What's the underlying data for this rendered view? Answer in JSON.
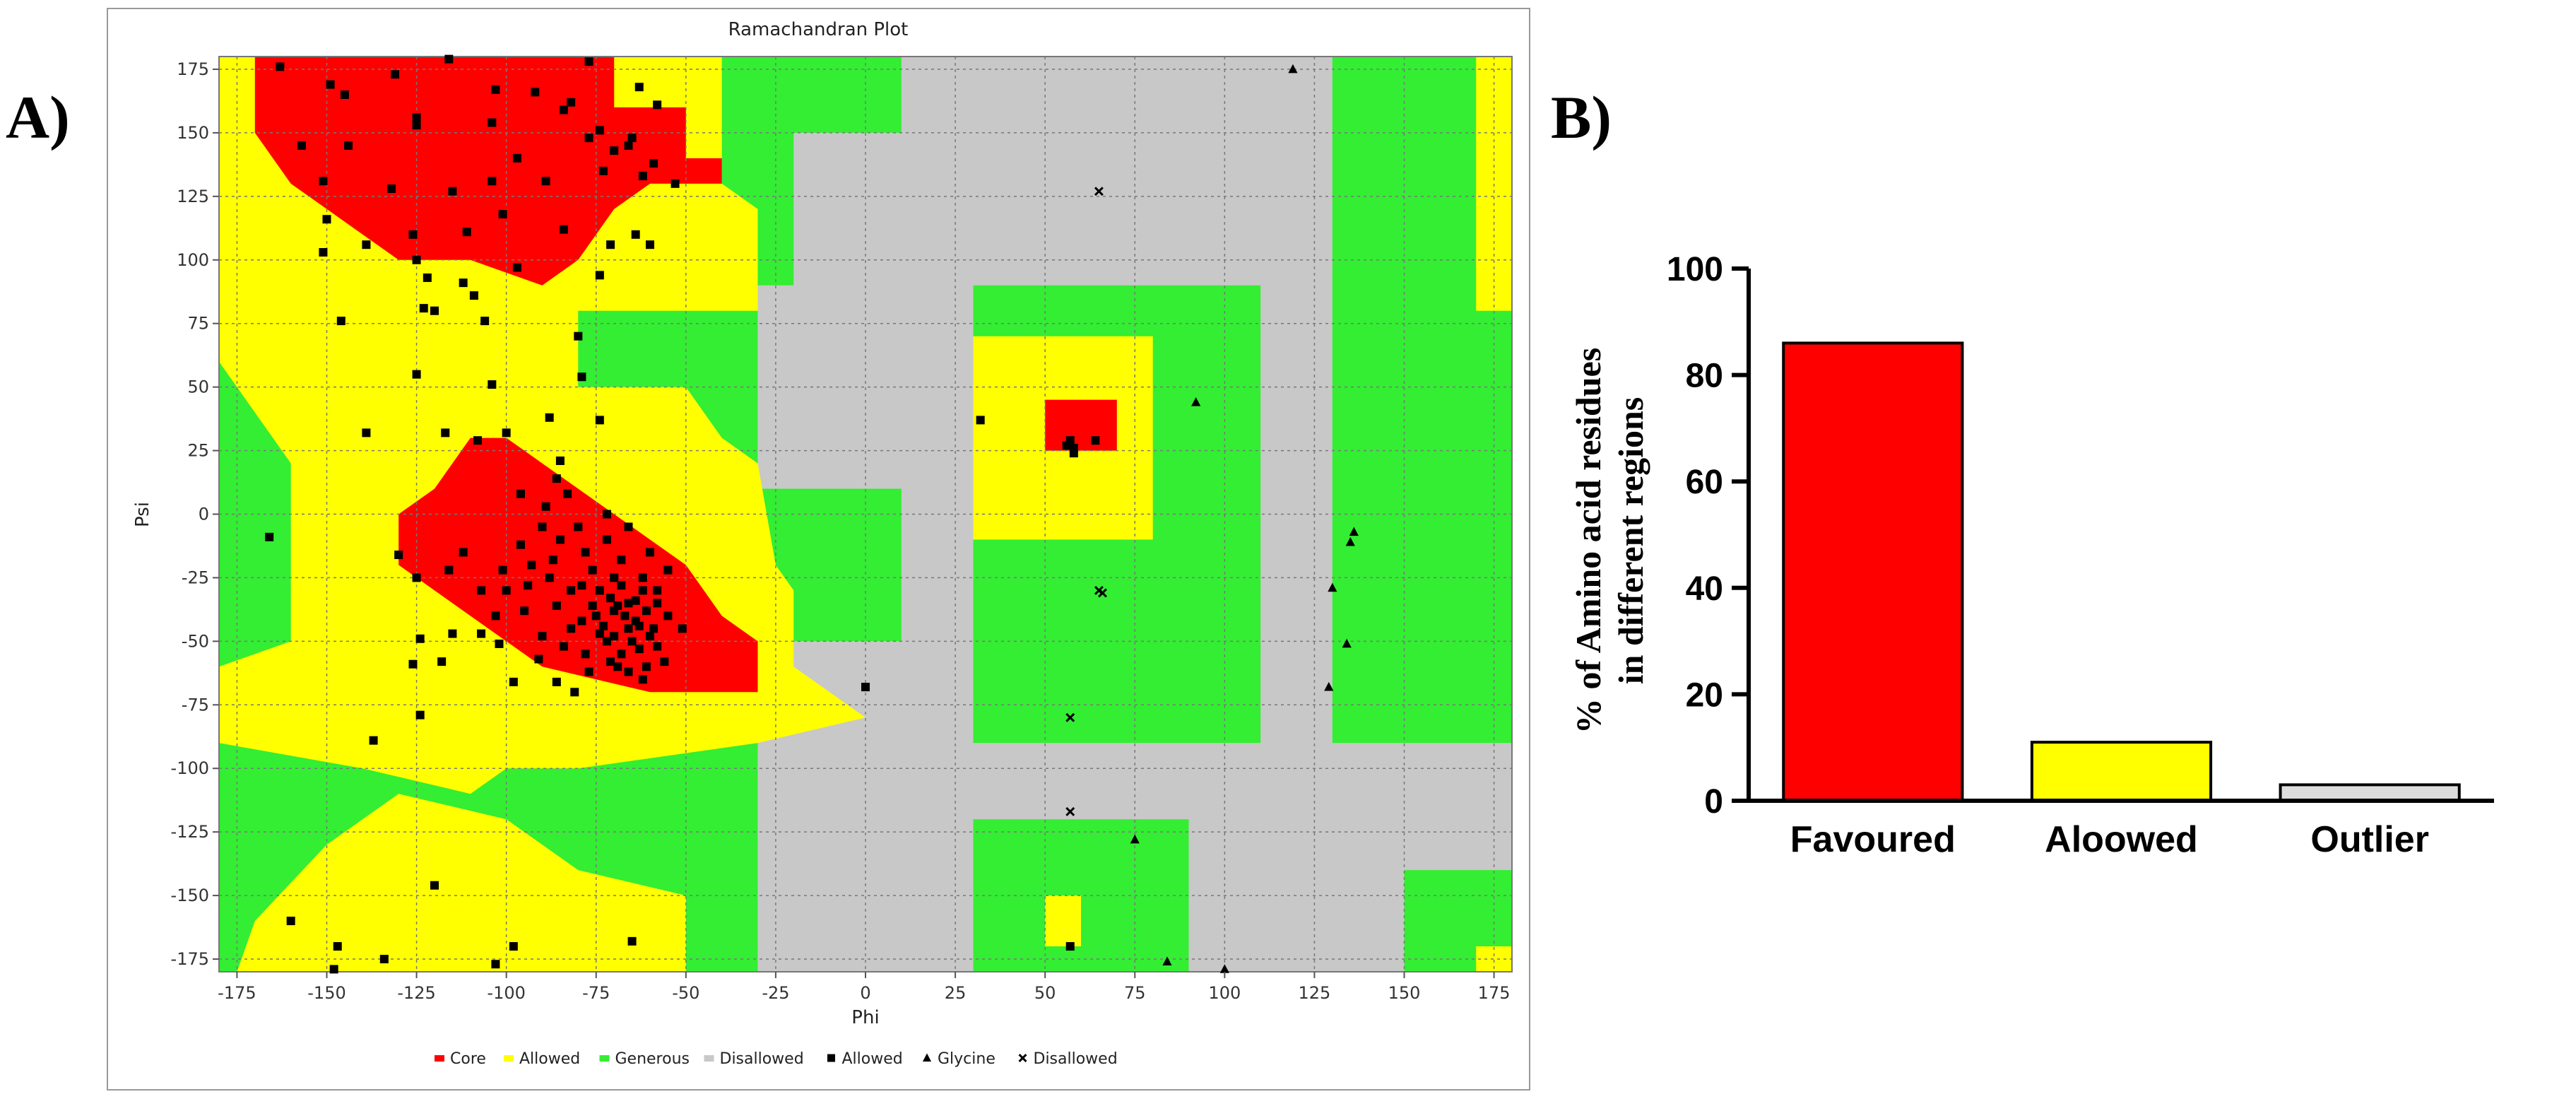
{
  "panels": {
    "a_label": "A)",
    "b_label": "B)"
  },
  "chart_data": [
    {
      "type": "scatter",
      "title": "Ramachandran Plot",
      "xlabel": "Phi",
      "ylabel": "Psi",
      "xlim": [
        -180,
        180
      ],
      "ylim": [
        -180,
        180
      ],
      "x_ticks": [
        -175,
        -150,
        -125,
        -100,
        -75,
        -50,
        -25,
        0,
        25,
        50,
        75,
        100,
        125,
        150,
        175
      ],
      "y_ticks": [
        175,
        150,
        125,
        100,
        75,
        50,
        25,
        0,
        -25,
        -50,
        -75,
        -100,
        -125,
        -150,
        -175
      ],
      "grid": true,
      "legend_position": "bottom",
      "legend": [
        {
          "label": "Core",
          "kind": "region",
          "color": "#ff0000"
        },
        {
          "label": "Allowed",
          "kind": "region",
          "color": "#ffff00"
        },
        {
          "label": "Generous",
          "kind": "region",
          "color": "#33ee33"
        },
        {
          "label": "Disallowed",
          "kind": "region",
          "color": "#c8c8c8"
        },
        {
          "label": "Allowed",
          "kind": "marker",
          "marker": "square"
        },
        {
          "label": "Glycine",
          "kind": "marker",
          "marker": "triangle"
        },
        {
          "label": "Disallowed",
          "kind": "marker",
          "marker": "cross"
        }
      ],
      "series": [
        {
          "name": "Allowed",
          "marker": "square",
          "points": [
            [
              -163,
              176
            ],
            [
              -149,
              169
            ],
            [
              -131,
              173
            ],
            [
              -116,
              179
            ],
            [
              -77,
              178
            ],
            [
              -103,
              167
            ],
            [
              -92,
              166
            ],
            [
              -82,
              162
            ],
            [
              -63,
              168
            ],
            [
              -145,
              165
            ],
            [
              -125,
              156
            ],
            [
              -84,
              159
            ],
            [
              -74,
              151
            ],
            [
              -65,
              148
            ],
            [
              -58,
              161
            ],
            [
              -157,
              145
            ],
            [
              -144,
              145
            ],
            [
              -125,
              153
            ],
            [
              -104,
              154
            ],
            [
              -97,
              140
            ],
            [
              -77,
              148
            ],
            [
              -70,
              143
            ],
            [
              -66,
              145
            ],
            [
              -59,
              138
            ],
            [
              -151,
              131
            ],
            [
              -132,
              128
            ],
            [
              -115,
              127
            ],
            [
              -104,
              131
            ],
            [
              -89,
              131
            ],
            [
              -73,
              135
            ],
            [
              -62,
              133
            ],
            [
              -53,
              130
            ],
            [
              -150,
              116
            ],
            [
              -139,
              106
            ],
            [
              -126,
              110
            ],
            [
              -111,
              111
            ],
            [
              -101,
              118
            ],
            [
              -84,
              112
            ],
            [
              -71,
              106
            ],
            [
              -64,
              110
            ],
            [
              -60,
              106
            ],
            [
              -151,
              103
            ],
            [
              -125,
              100
            ],
            [
              -122,
              93
            ],
            [
              -112,
              91
            ],
            [
              -97,
              97
            ],
            [
              -74,
              94
            ],
            [
              -146,
              76
            ],
            [
              -120,
              80
            ],
            [
              -123,
              81
            ],
            [
              -109,
              86
            ],
            [
              -106,
              76
            ],
            [
              -80,
              70
            ],
            [
              -125,
              55
            ],
            [
              -104,
              51
            ],
            [
              -79,
              54
            ],
            [
              -74,
              37
            ],
            [
              -88,
              38
            ],
            [
              -139,
              32
            ],
            [
              -108,
              29
            ],
            [
              -100,
              32
            ],
            [
              -117,
              32
            ],
            [
              -85,
              21
            ],
            [
              -86,
              14
            ],
            [
              -166,
              -9
            ],
            [
              -130,
              -16
            ],
            [
              -125,
              -25
            ],
            [
              -124,
              -49
            ],
            [
              -103,
              -40
            ],
            [
              -107,
              -47
            ],
            [
              -102,
              -51
            ],
            [
              -115,
              -47
            ],
            [
              -118,
              -58
            ],
            [
              -124,
              -79
            ],
            [
              -98,
              -66
            ],
            [
              -86,
              -66
            ],
            [
              -81,
              -70
            ],
            [
              -69,
              -60
            ],
            [
              -62,
              -65
            ],
            [
              -51,
              -45
            ],
            [
              -61,
              -60
            ],
            [
              -137,
              -89
            ],
            [
              -126,
              -59
            ],
            [
              -100,
              -30
            ],
            [
              -93,
              -20
            ],
            [
              -85,
              -10
            ],
            [
              -78,
              -15
            ],
            [
              -70,
              -25
            ],
            [
              -62,
              -30
            ],
            [
              -55,
              -22
            ],
            [
              -58,
              -35
            ],
            [
              -75,
              -40
            ],
            [
              -82,
              -45
            ],
            [
              -90,
              -48
            ],
            [
              -95,
              -38
            ],
            [
              -88,
              -25
            ],
            [
              -80,
              -5
            ],
            [
              -72,
              0
            ],
            [
              -66,
              -5
            ],
            [
              -60,
              -15
            ],
            [
              -66,
              -45
            ],
            [
              -72,
              -50
            ],
            [
              -78,
              -55
            ],
            [
              -68,
              -55
            ],
            [
              -55,
              -40
            ],
            [
              -60,
              -48
            ],
            [
              -66,
              -35
            ],
            [
              -70,
              -38
            ],
            [
              -64,
              -42
            ],
            [
              -74,
              -30
            ],
            [
              -62,
              -25
            ],
            [
              -58,
              -52
            ],
            [
              -82,
              -30
            ],
            [
              -76,
              -22
            ],
            [
              -68,
              -18
            ],
            [
              -90,
              -5
            ],
            [
              -96,
              -12
            ],
            [
              -86,
              -36
            ],
            [
              -68,
              -28
            ],
            [
              -70,
              -48
            ],
            [
              -64,
              -34
            ],
            [
              -73,
              -44
            ],
            [
              -67,
              -40
            ],
            [
              -61,
              -38
            ],
            [
              -76,
              -36
            ],
            [
              -71,
              -33
            ],
            [
              -65,
              -50
            ],
            [
              -79,
              -42
            ],
            [
              -63,
              -44
            ],
            [
              -69,
              -36
            ],
            [
              -74,
              -47
            ],
            [
              -58,
              -30
            ],
            [
              -87,
              -18
            ],
            [
              -94,
              -28
            ],
            [
              -101,
              -22
            ],
            [
              -107,
              -30
            ],
            [
              -112,
              -15
            ],
            [
              -116,
              -22
            ],
            [
              -83,
              8
            ],
            [
              -89,
              3
            ],
            [
              -96,
              8
            ],
            [
              -72,
              -10
            ],
            [
              -79,
              -28
            ],
            [
              -84,
              -52
            ],
            [
              -91,
              -57
            ],
            [
              -77,
              -62
            ],
            [
              -71,
              -58
            ],
            [
              -66,
              -62
            ],
            [
              -56,
              -58
            ],
            [
              -63,
              -53
            ],
            [
              -59,
              -45
            ],
            [
              -160,
              -160
            ],
            [
              -147,
              -170
            ],
            [
              -134,
              -175
            ],
            [
              -103,
              -177
            ],
            [
              -98,
              -170
            ],
            [
              -65,
              -168
            ],
            [
              -120,
              -146
            ],
            [
              -148,
              -179
            ],
            [
              0,
              -68
            ],
            [
              57,
              -170
            ],
            [
              32,
              37
            ],
            [
              57,
              29
            ],
            [
              58,
              24
            ],
            [
              56,
              27
            ],
            [
              64,
              29
            ],
            [
              58,
              26
            ]
          ]
        },
        {
          "name": "Glycine",
          "marker": "triangle",
          "points": [
            [
              119,
              175
            ],
            [
              92,
              44
            ],
            [
              136,
              -7
            ],
            [
              135,
              -11
            ],
            [
              130,
              -29
            ],
            [
              134,
              -51
            ],
            [
              129,
              -68
            ],
            [
              75,
              -128
            ],
            [
              84,
              -176
            ],
            [
              100,
              -179
            ]
          ]
        },
        {
          "name": "Disallowed",
          "marker": "cross",
          "points": [
            [
              65,
              127
            ],
            [
              65,
              -30
            ],
            [
              66,
              -31
            ],
            [
              57,
              -80
            ],
            [
              57,
              -117
            ]
          ]
        }
      ]
    },
    {
      "type": "bar",
      "categories": [
        "Favoured",
        "Aloowed",
        "Outlier"
      ],
      "values": [
        86,
        11,
        3
      ],
      "colors": [
        "#ff0000",
        "#ffff00",
        "#dddddd"
      ],
      "title": "",
      "xlabel": "",
      "ylabel_line1": "% of Amino acid residues",
      "ylabel_line2": "in different regions",
      "ylim": [
        0,
        100
      ],
      "y_ticks": [
        0,
        20,
        40,
        60,
        80,
        100
      ]
    }
  ]
}
